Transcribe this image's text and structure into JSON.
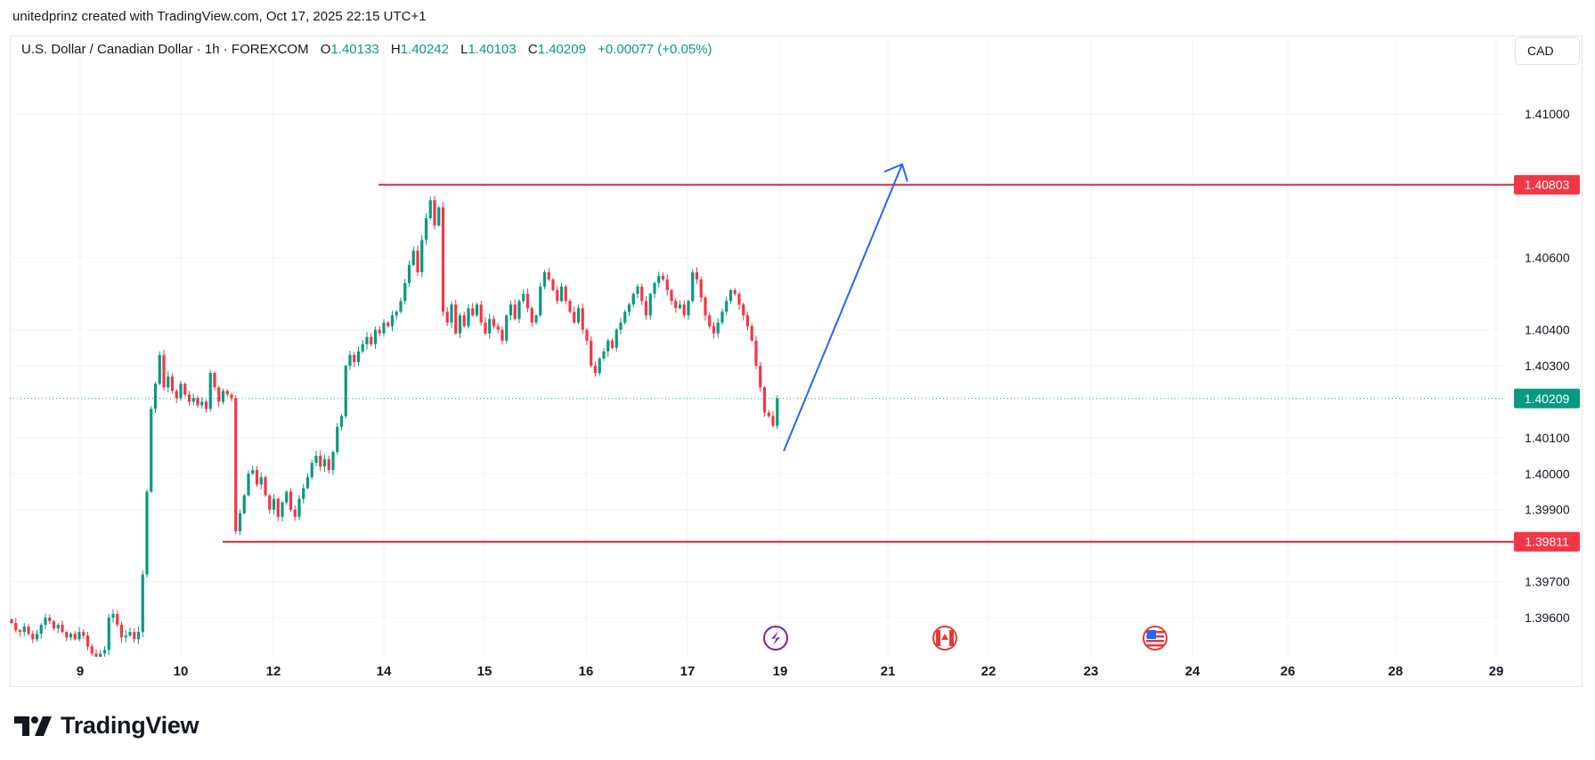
{
  "watermark": "unitedprinz created with TradingView.com, Oct 17, 2025 22:15 UTC+1",
  "legend": {
    "symbol": "U.S. Dollar / Canadian Dollar · 1h · FOREXCOM",
    "o_label": "O",
    "o": "1.40133",
    "h_label": "H",
    "h": "1.40242",
    "l_label": "L",
    "l": "1.40103",
    "c_label": "C",
    "c": "1.40209",
    "change": "+0.00077 (+0.05%)"
  },
  "currency_button": "CAD",
  "logo": "TradingView",
  "colors": {
    "up": "#089981",
    "down": "#f23645",
    "level_line": "#d0283f",
    "arrow": "#2962ff",
    "grid": "#f0f3fa"
  },
  "events": [
    {
      "icon": "lightning-icon",
      "color": "#7b1fa2",
      "near_tick": "19"
    },
    {
      "icon": "canada-flag-icon",
      "color": "#e53935",
      "near_tick": "21"
    },
    {
      "icon": "us-flag-icon",
      "color": "#e53935",
      "near_tick": "23"
    }
  ],
  "chart_data": {
    "type": "candlestick",
    "interval": "1h",
    "ylim": [
      1.39501,
      1.41296
    ],
    "price_ticks": [
      "1.41000",
      "1.40600",
      "1.40400",
      "1.40300",
      "1.40100",
      "1.40000",
      "1.39900",
      "1.39700",
      "1.39600"
    ],
    "time_ticks": [
      "9",
      "10",
      "12",
      "14",
      "15",
      "16",
      "17",
      "19",
      "21",
      "22",
      "23",
      "24",
      "26",
      "28",
      "29"
    ],
    "levels": [
      {
        "price": 1.40803,
        "label": "1.40803",
        "color": "#f23645"
      },
      {
        "price": 1.39811,
        "label": "1.39811",
        "color": "#f23645"
      }
    ],
    "last_price": {
      "price": 1.40209,
      "label": "1.40209",
      "color": "#089981"
    },
    "projection_arrow": {
      "from_price": 1.4006,
      "to_price": 1.4086,
      "direction": "up"
    },
    "closes": [
      1.39585,
      1.39565,
      1.3956,
      1.39575,
      1.39555,
      1.3954,
      1.39555,
      1.3958,
      1.396,
      1.3959,
      1.3957,
      1.3958,
      1.3956,
      1.39545,
      1.39555,
      1.3954,
      1.3956,
      1.3955,
      1.3952,
      1.395,
      1.3949,
      1.395,
      1.3951,
      1.396,
      1.3961,
      1.3958,
      1.39545,
      1.3955,
      1.3956,
      1.3954,
      1.3956,
      1.3972,
      1.3995,
      1.4018,
      1.4025,
      1.4033,
      1.4024,
      1.4027,
      1.4023,
      1.4021,
      1.4025,
      1.4022,
      1.402,
      1.4021,
      1.4019,
      1.402,
      1.4018,
      1.4028,
      1.4024,
      1.402,
      1.4023,
      1.4022,
      1.4021,
      1.3984,
      1.3989,
      1.3994,
      1.4,
      1.4001,
      1.3997,
      1.3999,
      1.3994,
      1.399,
      1.3993,
      1.3988,
      1.3992,
      1.3995,
      1.399,
      1.3988,
      1.3993,
      1.3996,
      1.3999,
      1.4003,
      1.4005,
      1.4002,
      1.4004,
      1.4001,
      1.4006,
      1.4013,
      1.4016,
      1.403,
      1.4033,
      1.4031,
      1.4034,
      1.4036,
      1.4038,
      1.4036,
      1.404,
      1.4039,
      1.4042,
      1.4041,
      1.4044,
      1.4045,
      1.4048,
      1.4053,
      1.4058,
      1.4062,
      1.4056,
      1.4065,
      1.4071,
      1.4076,
      1.4069,
      1.4074,
      1.4045,
      1.4042,
      1.4047,
      1.4039,
      1.4044,
      1.4041,
      1.4046,
      1.4044,
      1.4047,
      1.4042,
      1.4039,
      1.4043,
      1.4041,
      1.404,
      1.4037,
      1.4044,
      1.4047,
      1.4043,
      1.4048,
      1.405,
      1.4046,
      1.4042,
      1.4044,
      1.4052,
      1.4056,
      1.4054,
      1.4051,
      1.4048,
      1.4052,
      1.4048,
      1.4045,
      1.4042,
      1.4046,
      1.404,
      1.4037,
      1.403,
      1.4028,
      1.4032,
      1.4034,
      1.4037,
      1.4035,
      1.404,
      1.4042,
      1.4045,
      1.4047,
      1.405,
      1.4052,
      1.4048,
      1.4044,
      1.405,
      1.4053,
      1.4055,
      1.4054,
      1.4051,
      1.4048,
      1.4046,
      1.4047,
      1.4044,
      1.4048,
      1.4056,
      1.4054,
      1.4049,
      1.4044,
      1.4041,
      1.4039,
      1.4042,
      1.4045,
      1.4048,
      1.4051,
      1.405,
      1.4047,
      1.4044,
      1.4041,
      1.4037,
      1.403,
      1.4024,
      1.4017,
      1.4016,
      1.40133,
      1.40209
    ]
  }
}
